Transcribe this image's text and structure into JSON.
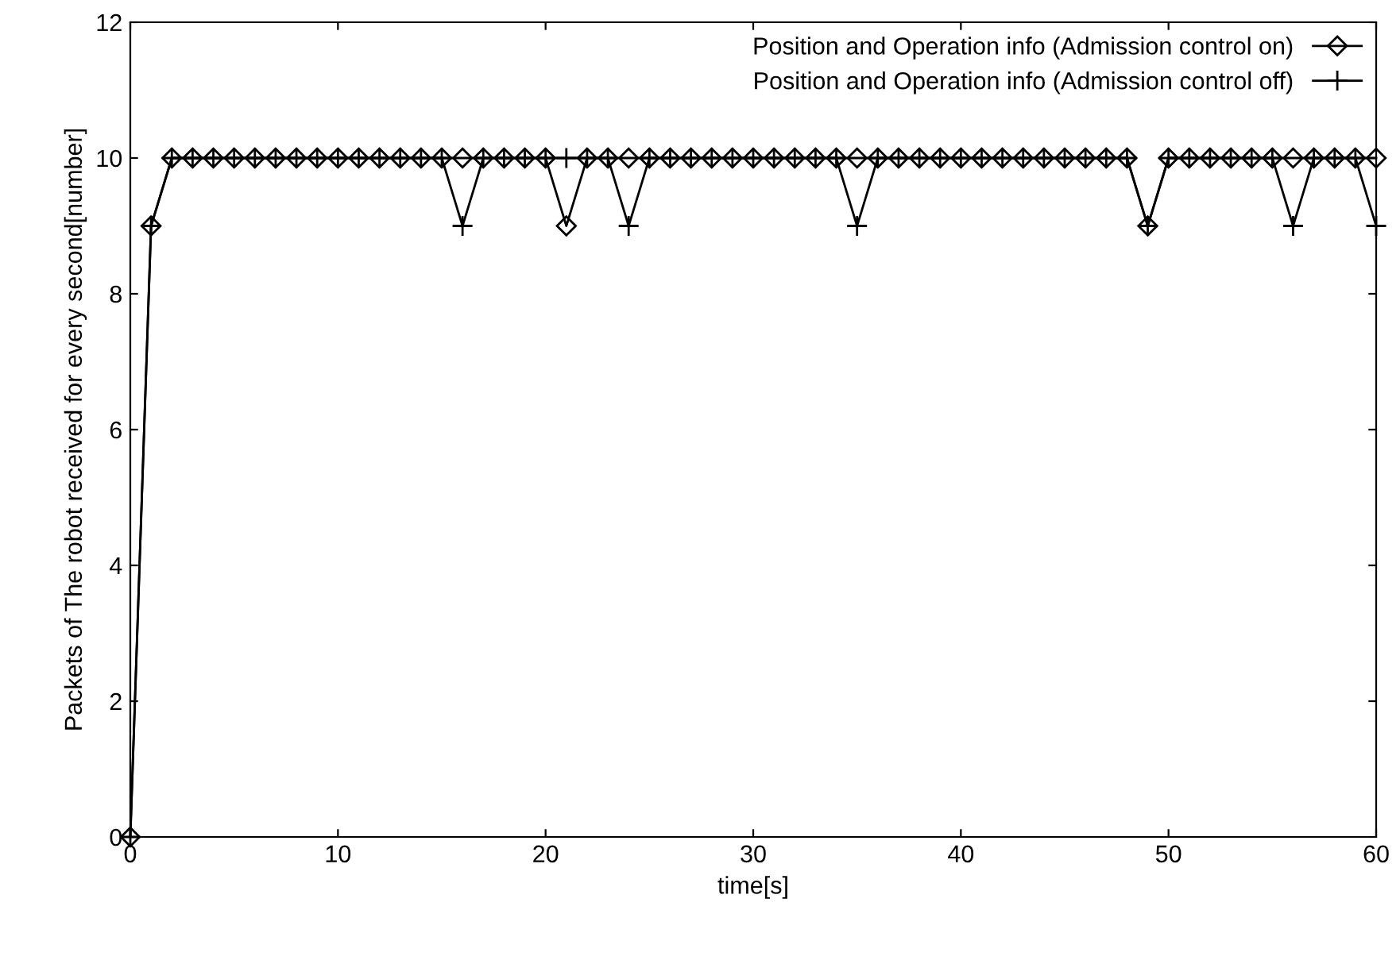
{
  "chart_data": {
    "type": "line",
    "xlabel": "time[s]",
    "ylabel": "Packets of The robot received for every second[number]",
    "x": [
      0,
      1,
      2,
      3,
      4,
      5,
      6,
      7,
      8,
      9,
      10,
      11,
      12,
      13,
      14,
      15,
      16,
      17,
      18,
      19,
      20,
      21,
      22,
      23,
      24,
      25,
      26,
      27,
      28,
      29,
      30,
      31,
      32,
      33,
      34,
      35,
      36,
      37,
      38,
      39,
      40,
      41,
      42,
      43,
      44,
      45,
      46,
      47,
      48,
      49,
      50,
      51,
      52,
      53,
      54,
      55,
      56,
      57,
      58,
      59,
      60
    ],
    "series": [
      {
        "name": "Position and Operation info (Admission control on)",
        "color": "#000000",
        "marker": "diamond",
        "values": [
          0,
          9,
          10,
          10,
          10,
          10,
          10,
          10,
          10,
          10,
          10,
          10,
          10,
          10,
          10,
          10,
          10,
          10,
          10,
          10,
          10,
          9,
          10,
          10,
          10,
          10,
          10,
          10,
          10,
          10,
          10,
          10,
          10,
          10,
          10,
          10,
          10,
          10,
          10,
          10,
          10,
          10,
          10,
          10,
          10,
          10,
          10,
          10,
          10,
          9,
          10,
          10,
          10,
          10,
          10,
          10,
          10,
          10,
          10,
          10,
          10
        ]
      },
      {
        "name": "Position and Operation info (Admission control off)",
        "color": "#000000",
        "marker": "cross",
        "values": [
          0,
          9,
          10,
          10,
          10,
          10,
          10,
          10,
          10,
          10,
          10,
          10,
          10,
          10,
          10,
          10,
          9,
          10,
          10,
          10,
          10,
          10,
          10,
          10,
          9,
          10,
          10,
          10,
          10,
          10,
          10,
          10,
          10,
          10,
          10,
          9,
          10,
          10,
          10,
          10,
          10,
          10,
          10,
          10,
          10,
          10,
          10,
          10,
          10,
          9,
          10,
          10,
          10,
          10,
          10,
          10,
          9,
          10,
          10,
          10,
          9
        ]
      }
    ],
    "xlim": [
      0,
      60
    ],
    "xticks": [
      0,
      10,
      20,
      30,
      40,
      50,
      60
    ],
    "ylim": [
      0,
      12
    ],
    "yticks": [
      0,
      2,
      4,
      6,
      8,
      10,
      12
    ],
    "grid": false,
    "legend": "top right",
    "line_style": "solid"
  }
}
